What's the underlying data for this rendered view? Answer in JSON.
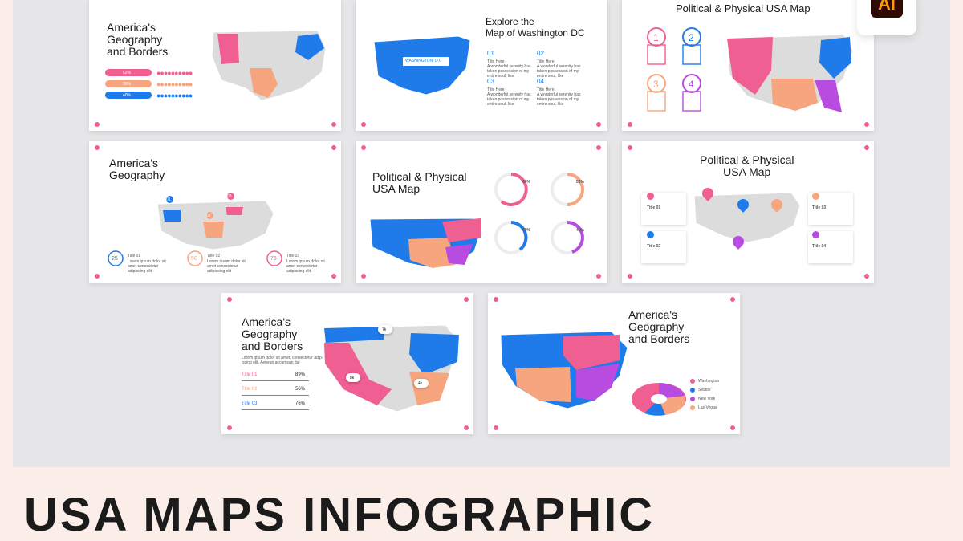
{
  "slides": {
    "s1": {
      "title": "America's\nGeography\nand Borders",
      "pct": [
        "52%",
        "30%",
        "40%"
      ]
    },
    "s2": {
      "title": "Explore the\nMap of Washington DC",
      "map_label": "WASHINGTON, D.C",
      "items": [
        {
          "num": "01",
          "label": "Title Here"
        },
        {
          "num": "02",
          "label": "Title Here"
        },
        {
          "num": "03",
          "label": "Title Here"
        },
        {
          "num": "04",
          "label": "Title Here"
        }
      ],
      "body": "A wonderful serenity has taken possession of my entire soul, like"
    },
    "s3": {
      "title": "Political & Physical USA Map",
      "steps": [
        "1",
        "2",
        "3",
        "4"
      ]
    },
    "s4": {
      "title": "America's\nGeography",
      "pins": [
        "01",
        "02",
        "03"
      ],
      "circles": [
        {
          "value": "25",
          "label": "Title 01"
        },
        {
          "value": "50",
          "label": "Title 02"
        },
        {
          "value": "75",
          "label": "Title 03"
        }
      ],
      "body": "Lorem ipsum dolor sit amet consectetur adipiscing elit"
    },
    "s5": {
      "title": "Political & Physical\nUSA Map",
      "stats": [
        "60%",
        "50%",
        "40%",
        "45%"
      ]
    },
    "s6": {
      "title": "Political & Physical\nUSA Map",
      "cards": [
        "Title 01",
        "Title 02",
        "Title 03",
        "Title 04"
      ]
    },
    "s7": {
      "title": "America's\nGeography\nand Borders",
      "body": "Lorem ipsum dolor sit amet, consectetur adip-\niscing elit. Aenean accumsan dui",
      "rows": [
        {
          "label": "Title 01",
          "value": "89%"
        },
        {
          "label": "Title 02",
          "value": "56%"
        },
        {
          "label": "Title 03",
          "value": "76%"
        }
      ],
      "badges": [
        "7k",
        "8k",
        "4k"
      ]
    },
    "s8": {
      "title": "America's\nGeography\nand Borders",
      "legend": [
        "Washington",
        "Seattle",
        "New York",
        "Las Vegas"
      ]
    }
  },
  "badge": {
    "label": "Ai"
  },
  "headline": "USA MAPS INFOGRAPHIC",
  "colors": {
    "pink": "#ef5f92",
    "blue": "#1f7be9",
    "orange": "#f6a57e",
    "purple": "#b84be0",
    "gray": "#dcdcdc",
    "bg": "#fbeee9"
  }
}
